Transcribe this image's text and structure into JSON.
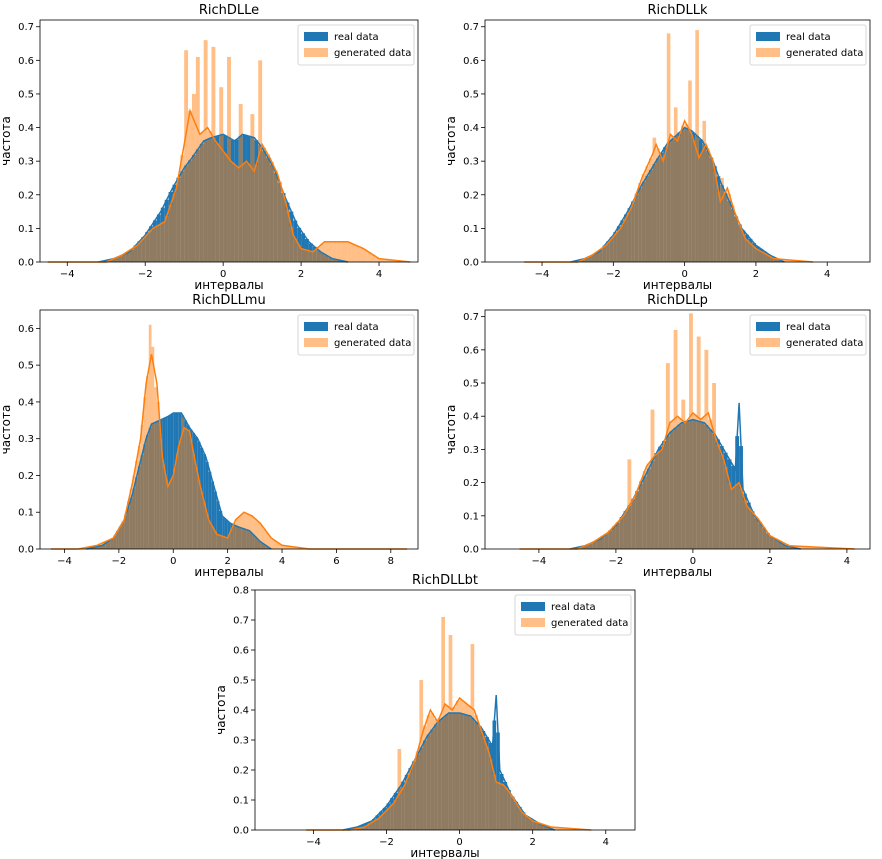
{
  "colors": {
    "real": "#1f77b4",
    "generated": "#ff7f0e",
    "generated_alpha": 0.5
  },
  "chart_data": [
    {
      "type": "histogram",
      "title": "RichDLLe",
      "xlabel": "интервалы",
      "ylabel": "частота",
      "xlim": [
        -4.7,
        5.0
      ],
      "ylim": [
        0,
        0.72
      ],
      "xticks": [
        -4,
        -2,
        0,
        2,
        4
      ],
      "yticks": [
        0.0,
        0.1,
        0.2,
        0.3,
        0.4,
        0.5,
        0.6,
        0.7
      ],
      "legend": [
        "real data",
        "generated data"
      ],
      "legend_position": "top-right",
      "real_density": [
        [
          -3.2,
          0.0
        ],
        [
          -2.8,
          0.01
        ],
        [
          -2.4,
          0.03
        ],
        [
          -2.0,
          0.08
        ],
        [
          -1.6,
          0.15
        ],
        [
          -1.3,
          0.22
        ],
        [
          -1.0,
          0.28
        ],
        [
          -0.8,
          0.31
        ],
        [
          -0.5,
          0.36
        ],
        [
          -0.3,
          0.37
        ],
        [
          0.0,
          0.38
        ],
        [
          0.3,
          0.36
        ],
        [
          0.5,
          0.38
        ],
        [
          0.8,
          0.37
        ],
        [
          1.0,
          0.34
        ],
        [
          1.3,
          0.28
        ],
        [
          1.6,
          0.19
        ],
        [
          1.9,
          0.11
        ],
        [
          2.2,
          0.06
        ],
        [
          2.5,
          0.03
        ],
        [
          2.8,
          0.01
        ],
        [
          3.2,
          0.0
        ]
      ],
      "generated_density": [
        [
          -4.5,
          0.0
        ],
        [
          -3.0,
          0.0
        ],
        [
          -2.6,
          0.02
        ],
        [
          -2.2,
          0.05
        ],
        [
          -1.8,
          0.1
        ],
        [
          -1.5,
          0.12
        ],
        [
          -1.2,
          0.22
        ],
        [
          -1.0,
          0.35
        ],
        [
          -0.85,
          0.45
        ],
        [
          -0.6,
          0.38
        ],
        [
          -0.4,
          0.4
        ],
        [
          -0.2,
          0.36
        ],
        [
          0.0,
          0.33
        ],
        [
          0.2,
          0.3
        ],
        [
          0.4,
          0.28
        ],
        [
          0.6,
          0.3
        ],
        [
          0.8,
          0.27
        ],
        [
          1.0,
          0.35
        ],
        [
          1.2,
          0.31
        ],
        [
          1.4,
          0.26
        ],
        [
          1.6,
          0.18
        ],
        [
          1.8,
          0.08
        ],
        [
          2.0,
          0.04
        ],
        [
          2.3,
          0.03
        ],
        [
          2.6,
          0.06
        ],
        [
          2.9,
          0.06
        ],
        [
          3.2,
          0.06
        ],
        [
          3.6,
          0.04
        ],
        [
          4.0,
          0.01
        ],
        [
          4.8,
          0.0
        ]
      ],
      "generated_spikes": [
        [
          -0.9,
          0.63
        ],
        [
          -0.7,
          0.5
        ],
        [
          -0.6,
          0.61
        ],
        [
          -0.4,
          0.66
        ],
        [
          -0.2,
          0.64
        ],
        [
          0.0,
          0.52
        ],
        [
          0.2,
          0.61
        ],
        [
          0.5,
          0.47
        ],
        [
          0.8,
          0.44
        ],
        [
          1.0,
          0.6
        ]
      ]
    },
    {
      "type": "histogram",
      "title": "RichDLLk",
      "xlabel": "интервалы",
      "ylabel": "частота",
      "xlim": [
        -5.6,
        5.2
      ],
      "ylim": [
        0,
        0.72
      ],
      "xticks": [
        -4,
        -2,
        0,
        2,
        4
      ],
      "yticks": [
        0.0,
        0.1,
        0.2,
        0.3,
        0.4,
        0.5,
        0.6,
        0.7
      ],
      "legend": [
        "real data",
        "generated data"
      ],
      "legend_position": "top-right",
      "real_density": [
        [
          -3.2,
          0.0
        ],
        [
          -2.8,
          0.01
        ],
        [
          -2.4,
          0.03
        ],
        [
          -2.0,
          0.08
        ],
        [
          -1.6,
          0.15
        ],
        [
          -1.2,
          0.23
        ],
        [
          -0.8,
          0.3
        ],
        [
          -0.5,
          0.35
        ],
        [
          -0.2,
          0.38
        ],
        [
          0.0,
          0.4
        ],
        [
          0.2,
          0.39
        ],
        [
          0.5,
          0.36
        ],
        [
          0.8,
          0.3
        ],
        [
          1.0,
          0.24
        ],
        [
          1.3,
          0.17
        ],
        [
          1.6,
          0.1
        ],
        [
          2.0,
          0.05
        ],
        [
          2.4,
          0.02
        ],
        [
          2.8,
          0.0
        ]
      ],
      "generated_density": [
        [
          -4.5,
          0.0
        ],
        [
          -3.0,
          0.0
        ],
        [
          -2.6,
          0.02
        ],
        [
          -2.2,
          0.05
        ],
        [
          -1.8,
          0.1
        ],
        [
          -1.5,
          0.16
        ],
        [
          -1.2,
          0.25
        ],
        [
          -0.9,
          0.32
        ],
        [
          -0.8,
          0.35
        ],
        [
          -0.6,
          0.3
        ],
        [
          -0.4,
          0.38
        ],
        [
          -0.2,
          0.36
        ],
        [
          0.0,
          0.42
        ],
        [
          0.2,
          0.38
        ],
        [
          0.4,
          0.31
        ],
        [
          0.6,
          0.35
        ],
        [
          0.8,
          0.3
        ],
        [
          1.0,
          0.18
        ],
        [
          1.2,
          0.22
        ],
        [
          1.4,
          0.15
        ],
        [
          1.7,
          0.07
        ],
        [
          2.0,
          0.04
        ],
        [
          2.5,
          0.01
        ],
        [
          3.6,
          0.0
        ]
      ],
      "generated_spikes": [
        [
          -0.4,
          0.68
        ],
        [
          -0.2,
          0.46
        ],
        [
          0.2,
          0.54
        ],
        [
          0.4,
          0.69
        ],
        [
          0.6,
          0.42
        ],
        [
          -0.8,
          0.37
        ],
        [
          1.1,
          0.25
        ]
      ]
    },
    {
      "type": "histogram",
      "title": "RichDLLmu",
      "xlabel": "интервалы",
      "ylabel": "частота",
      "xlim": [
        -4.9,
        9.0
      ],
      "ylim": [
        0,
        0.65
      ],
      "xticks": [
        -4,
        -2,
        0,
        2,
        4,
        6,
        8
      ],
      "yticks": [
        0.0,
        0.1,
        0.2,
        0.3,
        0.4,
        0.5,
        0.6
      ],
      "legend": [
        "real data",
        "generated data"
      ],
      "legend_position": "top-right",
      "real_density": [
        [
          -3.2,
          0.0
        ],
        [
          -2.6,
          0.01
        ],
        [
          -2.2,
          0.03
        ],
        [
          -1.8,
          0.08
        ],
        [
          -1.5,
          0.15
        ],
        [
          -1.2,
          0.24
        ],
        [
          -1.0,
          0.3
        ],
        [
          -0.8,
          0.34
        ],
        [
          -0.5,
          0.35
        ],
        [
          -0.2,
          0.36
        ],
        [
          0.0,
          0.37
        ],
        [
          0.3,
          0.37
        ],
        [
          0.6,
          0.33
        ],
        [
          0.9,
          0.3
        ],
        [
          1.2,
          0.25
        ],
        [
          1.5,
          0.17
        ],
        [
          1.8,
          0.09
        ],
        [
          2.1,
          0.07
        ],
        [
          2.4,
          0.06
        ],
        [
          2.8,
          0.05
        ],
        [
          3.2,
          0.02
        ],
        [
          3.6,
          0.0
        ]
      ],
      "generated_density": [
        [
          -4.5,
          0.0
        ],
        [
          -3.5,
          0.0
        ],
        [
          -2.8,
          0.01
        ],
        [
          -2.2,
          0.03
        ],
        [
          -1.8,
          0.08
        ],
        [
          -1.5,
          0.18
        ],
        [
          -1.2,
          0.3
        ],
        [
          -1.0,
          0.45
        ],
        [
          -0.8,
          0.53
        ],
        [
          -0.6,
          0.45
        ],
        [
          -0.4,
          0.25
        ],
        [
          -0.2,
          0.17
        ],
        [
          0.0,
          0.2
        ],
        [
          0.2,
          0.28
        ],
        [
          0.4,
          0.33
        ],
        [
          0.6,
          0.32
        ],
        [
          0.8,
          0.24
        ],
        [
          1.0,
          0.17
        ],
        [
          1.3,
          0.08
        ],
        [
          1.6,
          0.04
        ],
        [
          2.0,
          0.03
        ],
        [
          2.3,
          0.08
        ],
        [
          2.6,
          0.1
        ],
        [
          2.9,
          0.09
        ],
        [
          3.2,
          0.07
        ],
        [
          3.6,
          0.03
        ],
        [
          4.0,
          0.01
        ],
        [
          5.0,
          0.0
        ],
        [
          8.6,
          0.0
        ]
      ],
      "generated_spikes": [
        [
          -0.85,
          0.61
        ],
        [
          -0.75,
          0.55
        ],
        [
          -0.6,
          0.44
        ],
        [
          0.4,
          0.36
        ]
      ]
    },
    {
      "type": "histogram",
      "title": "RichDLLp",
      "xlabel": "интервалы",
      "ylabel": "частота",
      "xlim": [
        -5.4,
        4.6
      ],
      "ylim": [
        0,
        0.72
      ],
      "xticks": [
        -4,
        -2,
        0,
        2,
        4
      ],
      "yticks": [
        0.0,
        0.1,
        0.2,
        0.3,
        0.4,
        0.5,
        0.6,
        0.7
      ],
      "legend": [
        "real data",
        "generated data"
      ],
      "legend_position": "top-right",
      "real_density": [
        [
          -3.2,
          0.0
        ],
        [
          -2.8,
          0.01
        ],
        [
          -2.4,
          0.03
        ],
        [
          -2.0,
          0.07
        ],
        [
          -1.6,
          0.14
        ],
        [
          -1.2,
          0.23
        ],
        [
          -0.9,
          0.3
        ],
        [
          -0.6,
          0.35
        ],
        [
          -0.3,
          0.38
        ],
        [
          0.0,
          0.39
        ],
        [
          0.3,
          0.38
        ],
        [
          0.6,
          0.34
        ],
        [
          0.9,
          0.28
        ],
        [
          1.1,
          0.24
        ],
        [
          1.2,
          0.44
        ],
        [
          1.3,
          0.18
        ],
        [
          1.6,
          0.1
        ],
        [
          2.0,
          0.04
        ],
        [
          2.4,
          0.01
        ],
        [
          2.8,
          0.0
        ]
      ],
      "generated_density": [
        [
          -4.5,
          0.0
        ],
        [
          -3.0,
          0.0
        ],
        [
          -2.6,
          0.02
        ],
        [
          -2.2,
          0.05
        ],
        [
          -1.8,
          0.1
        ],
        [
          -1.5,
          0.16
        ],
        [
          -1.2,
          0.25
        ],
        [
          -1.0,
          0.28
        ],
        [
          -0.8,
          0.3
        ],
        [
          -0.6,
          0.38
        ],
        [
          -0.4,
          0.4
        ],
        [
          -0.2,
          0.38
        ],
        [
          0.0,
          0.41
        ],
        [
          0.2,
          0.39
        ],
        [
          0.4,
          0.41
        ],
        [
          0.6,
          0.33
        ],
        [
          0.8,
          0.27
        ],
        [
          1.0,
          0.18
        ],
        [
          1.2,
          0.2
        ],
        [
          1.4,
          0.13
        ],
        [
          1.7,
          0.09
        ],
        [
          2.0,
          0.04
        ],
        [
          2.5,
          0.01
        ],
        [
          4.2,
          0.0
        ]
      ],
      "generated_spikes": [
        [
          -0.6,
          0.56
        ],
        [
          -0.4,
          0.66
        ],
        [
          -0.2,
          0.45
        ],
        [
          0.0,
          0.71
        ],
        [
          0.2,
          0.64
        ],
        [
          0.4,
          0.6
        ],
        [
          0.6,
          0.5
        ],
        [
          -1.0,
          0.42
        ],
        [
          -1.6,
          0.27
        ],
        [
          1.0,
          0.2
        ]
      ]
    },
    {
      "type": "histogram",
      "title": "RichDLLbt",
      "xlabel": "интервалы",
      "ylabel": "частота",
      "xlim": [
        -5.6,
        4.8
      ],
      "ylim": [
        0,
        0.8
      ],
      "xticks": [
        -4,
        -2,
        0,
        2,
        4
      ],
      "yticks": [
        0.0,
        0.1,
        0.2,
        0.3,
        0.4,
        0.5,
        0.6,
        0.7,
        0.8
      ],
      "legend": [
        "real data",
        "generated data"
      ],
      "legend_position": "top-right",
      "real_density": [
        [
          -3.2,
          0.0
        ],
        [
          -2.8,
          0.01
        ],
        [
          -2.4,
          0.03
        ],
        [
          -2.0,
          0.08
        ],
        [
          -1.6,
          0.15
        ],
        [
          -1.2,
          0.24
        ],
        [
          -0.9,
          0.31
        ],
        [
          -0.6,
          0.36
        ],
        [
          -0.3,
          0.39
        ],
        [
          0.0,
          0.39
        ],
        [
          0.3,
          0.38
        ],
        [
          0.6,
          0.34
        ],
        [
          0.9,
          0.28
        ],
        [
          1.0,
          0.45
        ],
        [
          1.1,
          0.2
        ],
        [
          1.4,
          0.12
        ],
        [
          1.8,
          0.05
        ],
        [
          2.2,
          0.02
        ],
        [
          2.6,
          0.0
        ]
      ],
      "generated_density": [
        [
          -4.2,
          0.0
        ],
        [
          -3.0,
          0.0
        ],
        [
          -2.6,
          0.01
        ],
        [
          -2.2,
          0.04
        ],
        [
          -1.8,
          0.09
        ],
        [
          -1.5,
          0.15
        ],
        [
          -1.2,
          0.24
        ],
        [
          -1.0,
          0.33
        ],
        [
          -0.8,
          0.4
        ],
        [
          -0.6,
          0.36
        ],
        [
          -0.4,
          0.42
        ],
        [
          -0.2,
          0.4
        ],
        [
          0.0,
          0.44
        ],
        [
          0.2,
          0.42
        ],
        [
          0.4,
          0.4
        ],
        [
          0.6,
          0.33
        ],
        [
          0.8,
          0.26
        ],
        [
          1.0,
          0.16
        ],
        [
          1.2,
          0.15
        ],
        [
          1.4,
          0.12
        ],
        [
          1.7,
          0.06
        ],
        [
          2.0,
          0.03
        ],
        [
          2.5,
          0.01
        ],
        [
          3.6,
          0.0
        ]
      ],
      "generated_spikes": [
        [
          -0.4,
          0.71
        ],
        [
          -0.2,
          0.65
        ],
        [
          0.4,
          0.62
        ],
        [
          -1.0,
          0.5
        ],
        [
          -1.6,
          0.27
        ]
      ]
    }
  ]
}
